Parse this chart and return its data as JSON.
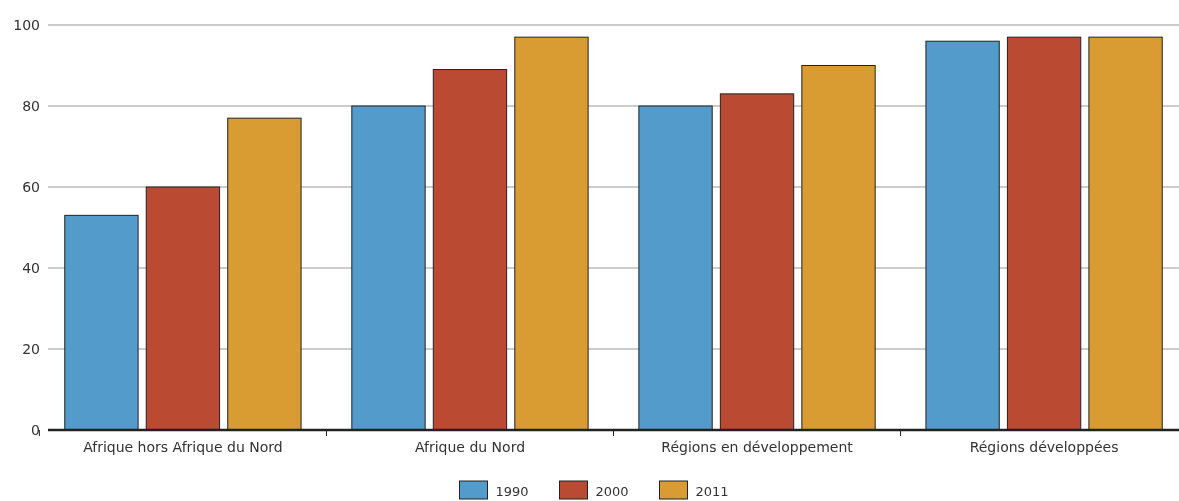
{
  "chart_data": {
    "type": "bar",
    "categories": [
      "Afrique hors Afrique du Nord",
      "Afrique du Nord",
      "Régions en développement",
      "Régions développées"
    ],
    "series": [
      {
        "name": "1990",
        "color": "#529bcb",
        "values": [
          53,
          80,
          80,
          96
        ]
      },
      {
        "name": "2000",
        "color": "#bb4a32",
        "values": [
          60,
          89,
          83,
          97
        ]
      },
      {
        "name": "2011",
        "color": "#d99c33",
        "values": [
          77,
          97,
          90,
          97
        ]
      }
    ],
    "ylim": [
      0,
      100
    ],
    "yticks": [
      0,
      20,
      40,
      60,
      80,
      100
    ],
    "grid": "y",
    "legend": "bottom"
  }
}
